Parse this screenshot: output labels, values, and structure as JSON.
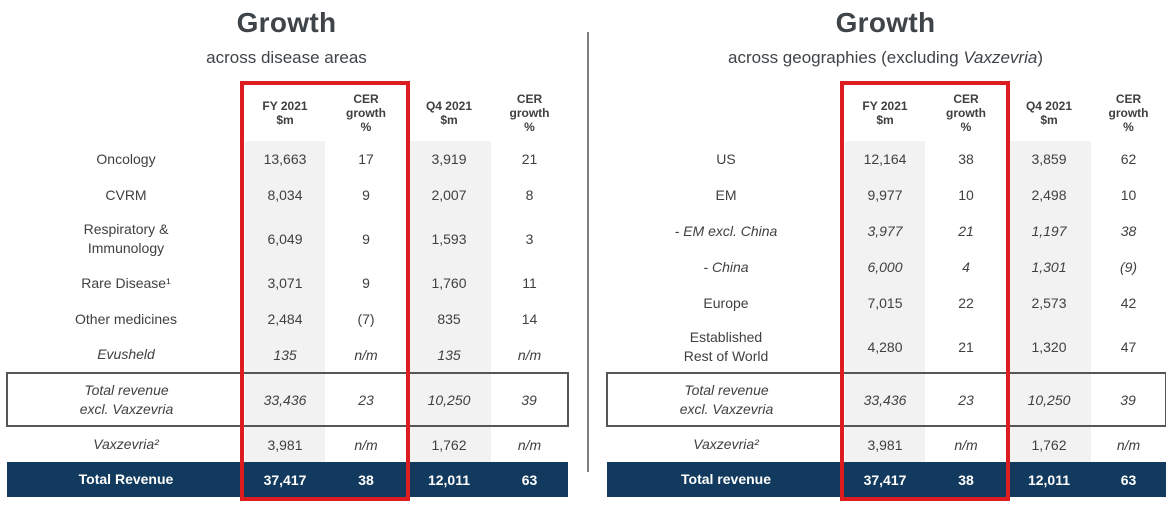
{
  "colors": {
    "navy": "#123a5f",
    "red": "#dd1c20",
    "shade": "#f2f2f2",
    "title_text": "#3f4448",
    "body_text": "#404040",
    "divider": "#7f7f7f",
    "box_border": "#55565a"
  },
  "panels": [
    {
      "title": "Growth",
      "subtitle": {
        "prefix": "across disease areas",
        "italic": "",
        "suffix": ""
      },
      "columns": [
        "FY 2021\n$m",
        "CER\ngrowth\n%",
        "Q4 2021\n$m",
        "CER\ngrowth\n%"
      ],
      "rows": [
        {
          "label": "Oncology",
          "label_italic": false,
          "values_italic": false,
          "style": "normal",
          "values": [
            "13,663",
            "17",
            "3,919",
            "21"
          ]
        },
        {
          "label": "CVRM",
          "label_italic": false,
          "values_italic": false,
          "style": "normal",
          "values": [
            "8,034",
            "9",
            "2,007",
            "8"
          ]
        },
        {
          "label": "Respiratory &\nImmunology",
          "label_italic": false,
          "values_italic": false,
          "style": "normal",
          "values": [
            "6,049",
            "9",
            "1,593",
            "3"
          ]
        },
        {
          "label": "Rare Disease¹",
          "label_italic": false,
          "values_italic": false,
          "style": "normal",
          "values": [
            "3,071",
            "9",
            "1,760",
            "11"
          ]
        },
        {
          "label": "Other medicines",
          "label_italic": false,
          "values_italic": false,
          "style": "normal",
          "values": [
            "2,484",
            "(7)",
            "835",
            "14"
          ]
        },
        {
          "label": "Evusheld",
          "label_italic": true,
          "values_italic": true,
          "style": "normal",
          "values": [
            "135",
            "n/m",
            "135",
            "n/m"
          ]
        },
        {
          "label": "Total revenue\nexcl. Vaxzevria",
          "label_italic": true,
          "values_italic": true,
          "style": "boxed",
          "values": [
            "33,436",
            "23",
            "10,250",
            "39"
          ]
        },
        {
          "label": "Vaxzevria²",
          "label_italic": true,
          "values_italic": false,
          "style": "normal",
          "values": [
            "3,981",
            "n/m",
            "1,762",
            "n/m"
          ]
        },
        {
          "label": "Total Revenue",
          "label_italic": false,
          "values_italic": false,
          "style": "total",
          "values": [
            "37,417",
            "38",
            "12,011",
            "63"
          ]
        }
      ]
    },
    {
      "title": "Growth",
      "subtitle": {
        "prefix": "across geographies (excluding ",
        "italic": "Vaxzevria",
        "suffix": ")"
      },
      "columns": [
        "FY 2021\n$m",
        "CER\ngrowth\n%",
        "Q4 2021\n$m",
        "CER\ngrowth\n%"
      ],
      "rows": [
        {
          "label": "US",
          "label_italic": false,
          "values_italic": false,
          "style": "normal",
          "values": [
            "12,164",
            "38",
            "3,859",
            "62"
          ]
        },
        {
          "label": "EM",
          "label_italic": false,
          "values_italic": false,
          "style": "normal",
          "values": [
            "9,977",
            "10",
            "2,498",
            "10"
          ]
        },
        {
          "label": "- EM excl. China",
          "label_italic": true,
          "values_italic": true,
          "style": "normal",
          "values": [
            "3,977",
            "21",
            "1,197",
            "38"
          ]
        },
        {
          "label": "- China",
          "label_italic": true,
          "values_italic": true,
          "style": "normal",
          "values": [
            "6,000",
            "4",
            "1,301",
            "(9)"
          ]
        },
        {
          "label": "Europe",
          "label_italic": false,
          "values_italic": false,
          "style": "normal",
          "values": [
            "7,015",
            "22",
            "2,573",
            "42"
          ]
        },
        {
          "label": "Established\nRest of World",
          "label_italic": false,
          "values_italic": false,
          "style": "normal",
          "values": [
            "4,280",
            "21",
            "1,320",
            "47"
          ]
        },
        {
          "label": "Total revenue\nexcl. Vaxzevria",
          "label_italic": true,
          "values_italic": true,
          "style": "boxed",
          "values": [
            "33,436",
            "23",
            "10,250",
            "39"
          ]
        },
        {
          "label": "Vaxzevria²",
          "label_italic": true,
          "values_italic": false,
          "style": "normal",
          "values": [
            "3,981",
            "n/m",
            "1,762",
            "n/m"
          ]
        },
        {
          "label": "Total revenue",
          "label_italic": false,
          "values_italic": false,
          "style": "total",
          "values": [
            "37,417",
            "38",
            "12,011",
            "63"
          ]
        }
      ]
    }
  ]
}
